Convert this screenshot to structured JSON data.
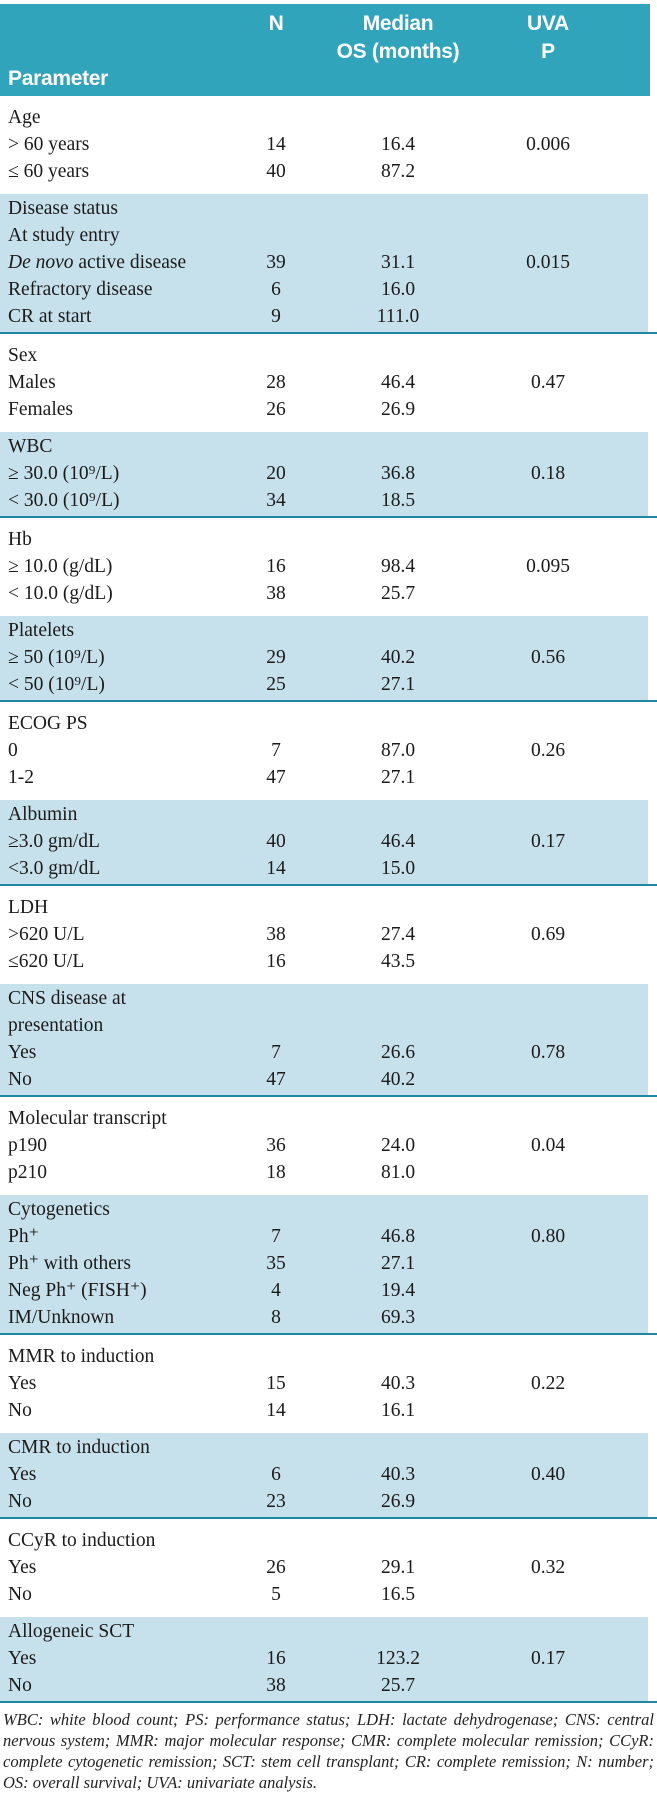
{
  "colors": {
    "header_teal": "#2fa4ba",
    "row_blue": "#c7e1ec",
    "rule_teal": "#1f87a0",
    "header_text": "#ffffff",
    "body_text": "#1b1b1b"
  },
  "table": {
    "header": {
      "parameter": "Parameter",
      "n": "N",
      "median_line1": "Median",
      "median_line2": "OS (months)",
      "uva_line1": "UVA",
      "uva_line2": "P"
    },
    "sections": [
      {
        "id": "age",
        "shade": "white",
        "rows": [
          {
            "label": "Age"
          },
          {
            "label": "> 60 years",
            "n": "14",
            "os": "16.4",
            "p": "0.006"
          },
          {
            "label": "≤ 60 years",
            "n": "40",
            "os": "87.2"
          }
        ]
      },
      {
        "id": "disease-status",
        "shade": "blue",
        "rows": [
          {
            "label": "Disease status"
          },
          {
            "label": "At study entry"
          },
          {
            "label_em": "De novo",
            "label": " active disease",
            "n": "39",
            "os": "31.1",
            "p": "0.015"
          },
          {
            "label": "Refractory disease",
            "n": "6",
            "os": "16.0"
          },
          {
            "label": "CR at start",
            "n": "9",
            "os": "111.0"
          }
        ]
      },
      {
        "id": "sex",
        "shade": "white",
        "rows": [
          {
            "label": "Sex"
          },
          {
            "label": "Males",
            "n": "28",
            "os": "46.4",
            "p": "0.47"
          },
          {
            "label": "Females",
            "n": "26",
            "os": "26.9"
          }
        ]
      },
      {
        "id": "wbc",
        "shade": "blue",
        "rows": [
          {
            "label": "WBC"
          },
          {
            "label": "≥ 30.0 (10⁹/L)",
            "n": "20",
            "os": "36.8",
            "p": "0.18"
          },
          {
            "label": "< 30.0 (10⁹/L)",
            "n": "34",
            "os": "18.5"
          }
        ]
      },
      {
        "id": "hb",
        "shade": "white",
        "rows": [
          {
            "label": "Hb"
          },
          {
            "label": "≥ 10.0 (g/dL)",
            "n": "16",
            "os": "98.4",
            "p": "0.095"
          },
          {
            "label": "< 10.0 (g/dL)",
            "n": "38",
            "os": "25.7"
          }
        ]
      },
      {
        "id": "platelets",
        "shade": "blue",
        "rows": [
          {
            "label": "Platelets"
          },
          {
            "label": "≥ 50 (10⁹/L)",
            "n": "29",
            "os": "40.2",
            "p": "0.56"
          },
          {
            "label": "< 50 (10⁹/L)",
            "n": "25",
            "os": "27.1"
          }
        ]
      },
      {
        "id": "ecog-ps",
        "shade": "white",
        "rows": [
          {
            "label": "ECOG PS"
          },
          {
            "label": "0",
            "n": "7",
            "os": "87.0",
            "p": "0.26"
          },
          {
            "label": "1-2",
            "n": "47",
            "os": "27.1"
          }
        ]
      },
      {
        "id": "albumin",
        "shade": "blue",
        "rows": [
          {
            "label": "Albumin"
          },
          {
            "label": "≥3.0 gm/dL",
            "n": "40",
            "os": "46.4",
            "p": "0.17"
          },
          {
            "label": "<3.0 gm/dL",
            "n": "14",
            "os": "15.0"
          }
        ]
      },
      {
        "id": "ldh",
        "shade": "white",
        "rows": [
          {
            "label": "LDH"
          },
          {
            "label": ">620 U/L",
            "n": "38",
            "os": "27.4",
            "p": "0.69"
          },
          {
            "label": "≤620 U/L",
            "n": "16",
            "os": "43.5"
          }
        ]
      },
      {
        "id": "cns-disease",
        "shade": "blue",
        "rows": [
          {
            "label": "CNS disease at"
          },
          {
            "label": "presentation"
          },
          {
            "label": "Yes",
            "n": "7",
            "os": "26.6",
            "p": "0.78"
          },
          {
            "label": "No",
            "n": "47",
            "os": "40.2"
          }
        ]
      },
      {
        "id": "molecular-transcript",
        "shade": "white",
        "rows": [
          {
            "label": "Molecular transcript"
          },
          {
            "label": "p190",
            "n": "36",
            "os": "24.0",
            "p": "0.04"
          },
          {
            "label": "p210",
            "n": "18",
            "os": "81.0"
          }
        ]
      },
      {
        "id": "cytogenetics",
        "shade": "blue",
        "rows": [
          {
            "label": "Cytogenetics"
          },
          {
            "label": "Ph⁺",
            "n": "7",
            "os": "46.8",
            "p": "0.80"
          },
          {
            "label": "Ph⁺ with others",
            "n": "35",
            "os": "27.1"
          },
          {
            "label": "Neg Ph⁺ (FISH⁺)",
            "n": "4",
            "os": "19.4"
          },
          {
            "label": "IM/Unknown",
            "n": "8",
            "os": "69.3"
          }
        ]
      },
      {
        "id": "mmr-to-induction",
        "shade": "white",
        "rows": [
          {
            "label": "MMR to induction"
          },
          {
            "label": "Yes",
            "n": "15",
            "os": "40.3",
            "p": "0.22"
          },
          {
            "label": "No",
            "n": "14",
            "os": "16.1"
          }
        ]
      },
      {
        "id": "cmr-to-induction",
        "shade": "blue",
        "rows": [
          {
            "label": "CMR to induction"
          },
          {
            "label": "Yes",
            "n": "6",
            "os": "40.3",
            "p": "0.40"
          },
          {
            "label": "No",
            "n": "23",
            "os": "26.9"
          }
        ]
      },
      {
        "id": "ccyr-to-induction",
        "shade": "white",
        "rows": [
          {
            "label": "CCyR to induction"
          },
          {
            "label": "Yes",
            "n": "26",
            "os": "29.1",
            "p": "0.32"
          },
          {
            "label": "No",
            "n": "5",
            "os": "16.5"
          }
        ]
      },
      {
        "id": "allogeneic-sct",
        "shade": "blue",
        "rows": [
          {
            "label": "Allogeneic SCT"
          },
          {
            "label": "Yes",
            "n": "16",
            "os": "123.2",
            "p": "0.17"
          },
          {
            "label": "No",
            "n": "38",
            "os": "25.7"
          }
        ]
      }
    ],
    "footnote": "WBC: white blood count; PS: performance status; LDH: lactate dehydrogenase; CNS: central nervous system; MMR: major molecular response; CMR: complete molecular remission; CCyR: complete cytogenetic remission; SCT: stem cell transplant; CR: complete remission; N: number; OS: overall survival; UVA: univariate analysis."
  }
}
